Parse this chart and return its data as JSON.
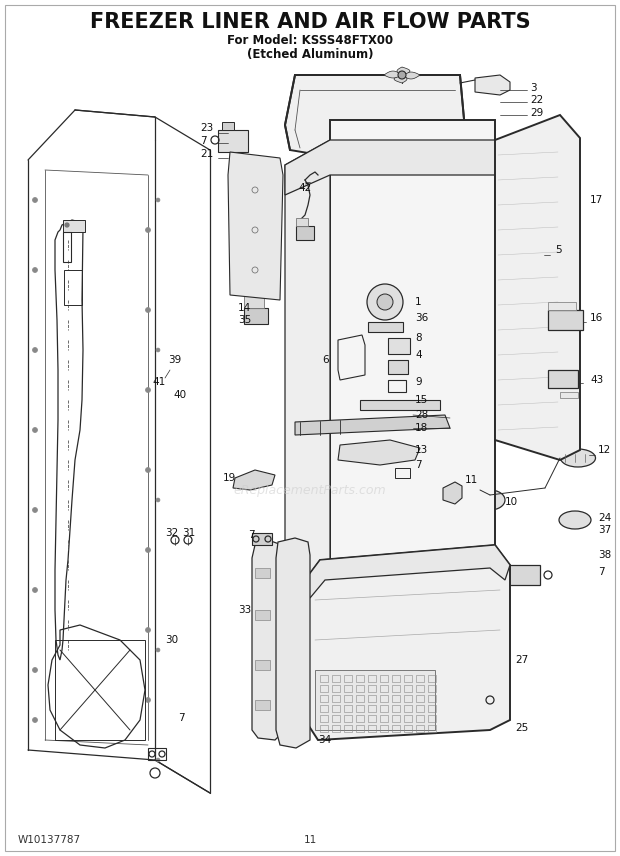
{
  "title": "FREEZER LINER AND AIR FLOW PARTS",
  "subtitle1": "For Model: KSSS48FTX00",
  "subtitle2": "(Etched Aluminum)",
  "footer_left": "W10137787",
  "footer_center": "11",
  "bg_color": "#ffffff",
  "title_fontsize": 15,
  "subtitle_fontsize": 8.5,
  "footer_fontsize": 7.5,
  "label_fontsize": 7.5,
  "watermark": "eReplacementParts.com",
  "watermark_color": "#cccccc",
  "line_color": "#2a2a2a",
  "line_width": 0.9
}
